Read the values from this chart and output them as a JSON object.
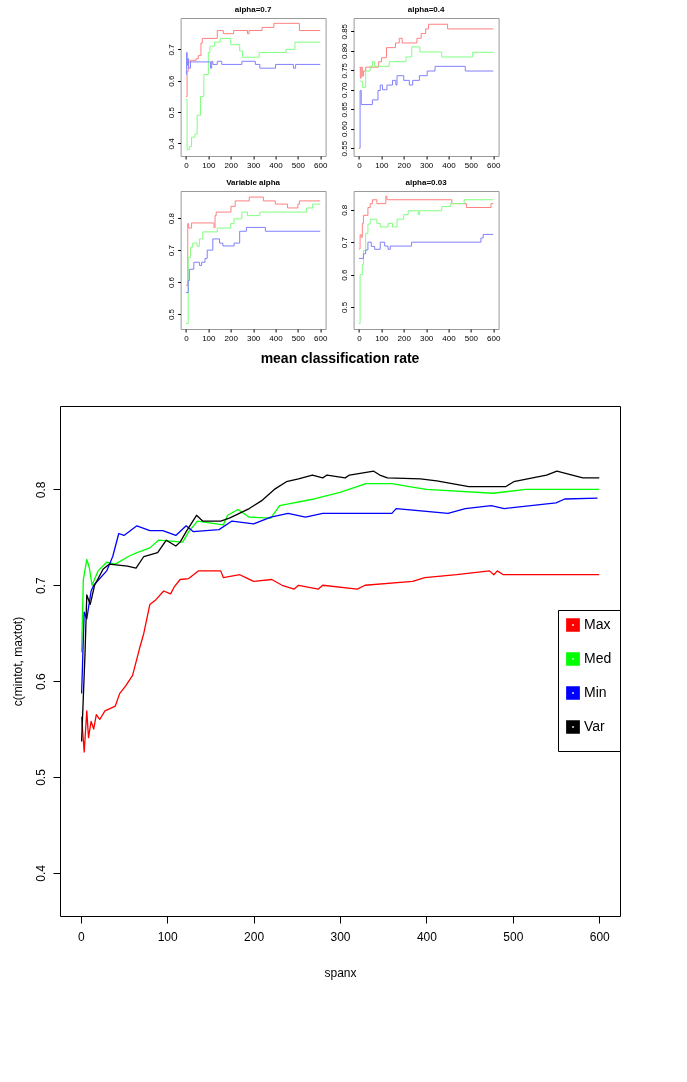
{
  "chart_data": [
    {
      "type": "step",
      "title": "alpha=0.7",
      "xlim": [
        -24,
        624
      ],
      "ylim": [
        0.36,
        0.8
      ],
      "xticks": [
        0,
        100,
        200,
        300,
        400,
        500,
        600
      ],
      "yticks": [
        0.4,
        0.5,
        0.6,
        0.7
      ],
      "series": [
        {
          "color": "#ff8080",
          "x": [
            0,
            5,
            10,
            20,
            45,
            55,
            67,
            73,
            140,
            167,
            213,
            275,
            282,
            340,
            393,
            507,
            600
          ],
          "values": [
            0.55,
            0.63,
            0.66,
            0.665,
            0.67,
            0.68,
            0.72,
            0.735,
            0.76,
            0.75,
            0.76,
            0.75,
            0.76,
            0.77,
            0.783,
            0.76,
            0.76
          ]
        },
        {
          "color": "#80ff80",
          "x": [
            0,
            5,
            15,
            25,
            40,
            50,
            65,
            80,
            100,
            107,
            127,
            153,
            200,
            240,
            253,
            327,
            447,
            487,
            600
          ],
          "values": [
            0.54,
            0.38,
            0.39,
            0.42,
            0.43,
            0.49,
            0.55,
            0.62,
            0.69,
            0.71,
            0.723,
            0.735,
            0.715,
            0.695,
            0.675,
            0.69,
            0.7,
            0.723,
            0.723
          ]
        },
        {
          "color": "#8080ff",
          "x": [
            0,
            3,
            5,
            8,
            12,
            20,
            110,
            115,
            120,
            140,
            160,
            250,
            310,
            330,
            400,
            480,
            490,
            600
          ],
          "values": [
            0.62,
            0.69,
            0.65,
            0.67,
            0.64,
            0.66,
            0.64,
            0.662,
            0.652,
            0.662,
            0.652,
            0.662,
            0.652,
            0.64,
            0.652,
            0.64,
            0.652,
            0.652
          ]
        }
      ]
    },
    {
      "type": "step",
      "title": "alpha=0.4",
      "xlim": [
        -24,
        624
      ],
      "ylim": [
        0.53,
        0.884
      ],
      "xticks": [
        0,
        100,
        200,
        300,
        400,
        500,
        600
      ],
      "yticks": [
        {
          "value": 0.55,
          "label": "0.55"
        },
        {
          "value": 0.6,
          "label": "0.60"
        },
        {
          "value": 0.65,
          "label": "0.65"
        },
        {
          "value": 0.7,
          "label": "0.70"
        },
        {
          "value": 0.75,
          "label": "0.75"
        },
        {
          "value": 0.8,
          "label": "0.80"
        },
        {
          "value": 0.85,
          "label": "0.85"
        }
      ],
      "series": [
        {
          "color": "#ff8080",
          "x": [
            3,
            6,
            10,
            15,
            20,
            30,
            88,
            101,
            123,
            163,
            180,
            193,
            259,
            278,
            298,
            311,
            396,
            600
          ],
          "values": [
            0.758,
            0.73,
            0.758,
            0.735,
            0.748,
            0.758,
            0.772,
            0.782,
            0.808,
            0.82,
            0.832,
            0.82,
            0.832,
            0.844,
            0.856,
            0.868,
            0.856,
            0.856
          ]
        },
        {
          "color": "#80ff80",
          "x": [
            5,
            15,
            30,
            50,
            60,
            70,
            135,
            210,
            236,
            272,
            370,
            508,
            600
          ],
          "values": [
            0.722,
            0.706,
            0.748,
            0.76,
            0.772,
            0.76,
            0.772,
            0.784,
            0.81,
            0.797,
            0.784,
            0.796,
            0.796
          ]
        },
        {
          "color": "#8080ff",
          "x": [
            0,
            5,
            10,
            60,
            85,
            95,
            105,
            125,
            150,
            165,
            170,
            200,
            225,
            240,
            270,
            305,
            340,
            475,
            600
          ],
          "values": [
            0.55,
            0.698,
            0.662,
            0.674,
            0.698,
            0.712,
            0.7,
            0.712,
            0.724,
            0.712,
            0.736,
            0.724,
            0.712,
            0.724,
            0.736,
            0.748,
            0.76,
            0.748,
            0.748
          ]
        }
      ]
    },
    {
      "type": "step",
      "title": "Variable alpha",
      "xlim": [
        -24,
        624
      ],
      "ylim": [
        0.453,
        0.885
      ],
      "xticks": [
        0,
        100,
        200,
        300,
        400,
        500,
        600
      ],
      "yticks": [
        0.5,
        0.6,
        0.7,
        0.8
      ],
      "series": [
        {
          "color": "#ff8080",
          "x": [
            0,
            8,
            12,
            25,
            125,
            130,
            135,
            201,
            220,
            283,
            346,
            399,
            454,
            500,
            507,
            600
          ],
          "values": [
            0.59,
            0.783,
            0.769,
            0.785,
            0.77,
            0.808,
            0.819,
            0.837,
            0.854,
            0.866,
            0.854,
            0.844,
            0.832,
            0.844,
            0.854,
            0.854
          ]
        },
        {
          "color": "#80ff80",
          "x": [
            0,
            10,
            20,
            30,
            50,
            60,
            75,
            140,
            200,
            215,
            250,
            275,
            330,
            539,
            566,
            600
          ],
          "values": [
            0.47,
            0.677,
            0.709,
            0.722,
            0.712,
            0.735,
            0.757,
            0.769,
            0.783,
            0.798,
            0.819,
            0.808,
            0.819,
            0.832,
            0.844,
            0.844
          ]
        },
        {
          "color": "#8080ff",
          "x": [
            0,
            10,
            15,
            35,
            60,
            70,
            85,
            95,
            120,
            150,
            165,
            215,
            240,
            270,
            355,
            600
          ],
          "values": [
            0.567,
            0.604,
            0.64,
            0.662,
            0.652,
            0.662,
            0.674,
            0.7,
            0.735,
            0.722,
            0.713,
            0.722,
            0.759,
            0.771,
            0.759,
            0.759
          ]
        }
      ]
    },
    {
      "type": "step",
      "title": "alpha=0.03",
      "xlim": [
        -24,
        624
      ],
      "ylim": [
        0.432,
        0.858
      ],
      "xticks": [
        0,
        100,
        200,
        300,
        400,
        500,
        600
      ],
      "yticks": [
        0.5,
        0.6,
        0.7,
        0.8
      ],
      "series": [
        {
          "color": "#ff8080",
          "x": [
            0,
            5,
            10,
            15,
            20,
            40,
            50,
            60,
            80,
            120,
            125,
            415,
            480,
            590,
            600
          ],
          "values": [
            0.679,
            0.723,
            0.715,
            0.758,
            0.783,
            0.807,
            0.819,
            0.831,
            0.819,
            0.842,
            0.831,
            0.819,
            0.807,
            0.819,
            0.819
          ]
        },
        {
          "color": "#80ff80",
          "x": [
            0,
            5,
            15,
            20,
            30,
            40,
            50,
            80,
            95,
            130,
            150,
            170,
            200,
            220,
            265,
            270,
            370,
            410,
            470,
            600
          ],
          "values": [
            0.449,
            0.6,
            0.631,
            0.674,
            0.727,
            0.756,
            0.771,
            0.758,
            0.747,
            0.758,
            0.747,
            0.771,
            0.785,
            0.797,
            0.785,
            0.797,
            0.81,
            0.819,
            0.831,
            0.831
          ]
        },
        {
          "color": "#8080ff",
          "x": [
            0,
            20,
            30,
            40,
            55,
            70,
            95,
            115,
            130,
            140,
            235,
            545,
            555,
            600
          ],
          "values": [
            0.65,
            0.664,
            0.676,
            0.7,
            0.687,
            0.678,
            0.7,
            0.688,
            0.678,
            0.688,
            0.7,
            0.713,
            0.724,
            0.724
          ]
        }
      ]
    },
    {
      "type": "line",
      "title": "mean classification rate",
      "xlabel": "spanx",
      "ylabel": "c(mintot, maxtot)",
      "xlim": [
        -24,
        624
      ],
      "ylim": [
        0.355,
        0.887
      ],
      "xticks": [
        0,
        100,
        200,
        300,
        400,
        500,
        600
      ],
      "yticks": [
        0.4,
        0.5,
        0.6,
        0.7,
        0.8
      ],
      "legend": "right",
      "series": [
        {
          "name": "Max",
          "color": "#ff0000",
          "x": [
            1,
            4,
            7,
            9,
            12,
            15,
            18,
            22,
            28,
            40,
            45,
            52,
            60,
            68,
            73,
            80,
            87,
            96,
            104,
            108,
            115,
            125,
            136,
            162,
            165,
            184,
            191,
            200,
            221,
            233,
            247,
            252,
            275,
            280,
            320,
            329,
            384,
            398,
            435,
            473,
            478,
            482,
            489,
            600
          ],
          "values": [
            0.563,
            0.526,
            0.569,
            0.541,
            0.558,
            0.55,
            0.565,
            0.56,
            0.569,
            0.574,
            0.587,
            0.595,
            0.606,
            0.634,
            0.65,
            0.68,
            0.685,
            0.694,
            0.691,
            0.698,
            0.706,
            0.707,
            0.715,
            0.715,
            0.708,
            0.711,
            0.708,
            0.704,
            0.706,
            0.7,
            0.696,
            0.7,
            0.696,
            0.7,
            0.696,
            0.7,
            0.704,
            0.708,
            0.711,
            0.715,
            0.711,
            0.715,
            0.711,
            0.711
          ]
        },
        {
          "name": "Med",
          "color": "#00ff00",
          "x": [
            1,
            3,
            7,
            10,
            13,
            20,
            30,
            40,
            55,
            65,
            80,
            90,
            118,
            125,
            135,
            165,
            170,
            182,
            195,
            220,
            230,
            270,
            300,
            330,
            360,
            380,
            400,
            477,
            515,
            600
          ],
          "values": [
            0.63,
            0.706,
            0.727,
            0.718,
            0.7,
            0.715,
            0.724,
            0.722,
            0.73,
            0.734,
            0.739,
            0.747,
            0.745,
            0.756,
            0.767,
            0.763,
            0.773,
            0.779,
            0.771,
            0.77,
            0.783,
            0.79,
            0.797,
            0.806,
            0.806,
            0.803,
            0.8,
            0.796,
            0.8,
            0.8
          ]
        },
        {
          "name": "Min",
          "color": "#0000ff",
          "x": [
            1,
            4,
            7,
            12,
            15,
            30,
            37,
            44,
            50,
            65,
            80,
            95,
            110,
            122,
            130,
            160,
            175,
            200,
            220,
            240,
            260,
            280,
            360,
            365,
            425,
            445,
            475,
            490,
            550,
            560,
            598
          ],
          "values": [
            0.587,
            0.672,
            0.665,
            0.694,
            0.7,
            0.715,
            0.73,
            0.754,
            0.752,
            0.762,
            0.757,
            0.757,
            0.752,
            0.762,
            0.756,
            0.758,
            0.767,
            0.764,
            0.771,
            0.775,
            0.771,
            0.775,
            0.775,
            0.78,
            0.775,
            0.78,
            0.783,
            0.78,
            0.786,
            0.79,
            0.791
          ]
        },
        {
          "name": "Var",
          "color": "#000000",
          "x": [
            1,
            5,
            7,
            11,
            16,
            26,
            33,
            54,
            64,
            73,
            89,
            99,
            110,
            115,
            122,
            134,
            141,
            162,
            172,
            195,
            209,
            224,
            238,
            252,
            268,
            280,
            285,
            306,
            311,
            339,
            346,
            355,
            393,
            412,
            449,
            492,
            501,
            539,
            551,
            581,
            600
          ],
          "values": [
            0.537,
            0.63,
            0.69,
            0.68,
            0.7,
            0.717,
            0.722,
            0.72,
            0.718,
            0.73,
            0.734,
            0.747,
            0.741,
            0.745,
            0.756,
            0.773,
            0.767,
            0.767,
            0.77,
            0.78,
            0.788,
            0.8,
            0.808,
            0.811,
            0.815,
            0.812,
            0.815,
            0.812,
            0.815,
            0.819,
            0.815,
            0.812,
            0.811,
            0.809,
            0.803,
            0.803,
            0.808,
            0.815,
            0.819,
            0.812,
            0.812
          ]
        }
      ]
    }
  ]
}
